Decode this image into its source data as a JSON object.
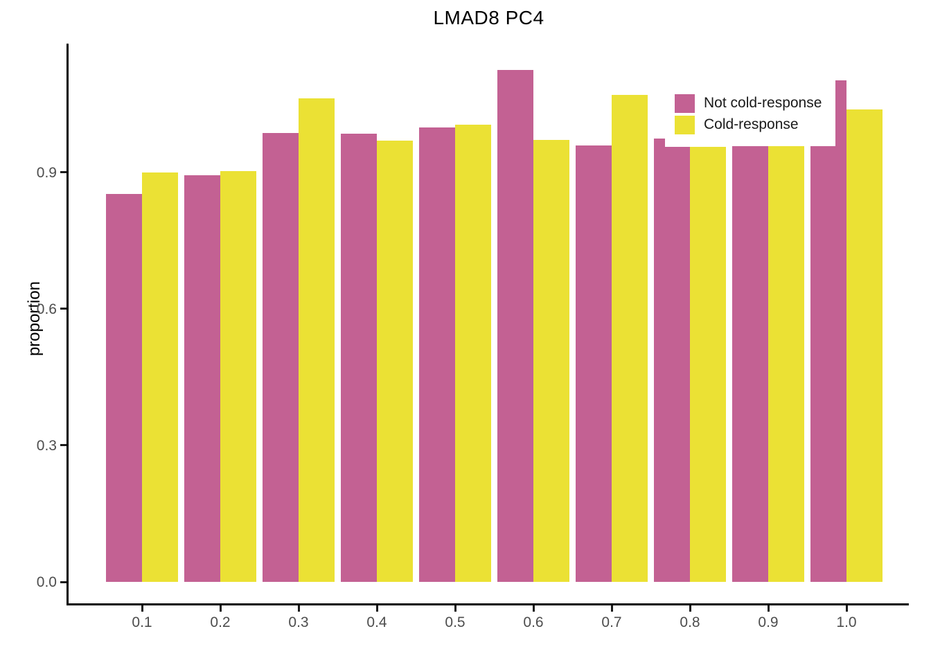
{
  "title": "LMAD8 PC4",
  "axes": {
    "y_label": "proportion",
    "y_ticks": [
      {
        "label": "0.0",
        "value": 0.0
      },
      {
        "label": "0.3",
        "value": 0.3
      },
      {
        "label": "0.6",
        "value": 0.6
      },
      {
        "label": "0.9",
        "value": 0.9
      }
    ],
    "x_ticks": [
      {
        "label": "0.1",
        "value": 0.1
      },
      {
        "label": "0.2",
        "value": 0.2
      },
      {
        "label": "0.3",
        "value": 0.3
      },
      {
        "label": "0.4",
        "value": 0.4
      },
      {
        "label": "0.5",
        "value": 0.5
      },
      {
        "label": "0.6",
        "value": 0.6
      },
      {
        "label": "0.7",
        "value": 0.7
      },
      {
        "label": "0.8",
        "value": 0.8
      },
      {
        "label": "0.9",
        "value": 0.9
      },
      {
        "label": "1.0",
        "value": 1.0
      }
    ]
  },
  "legend": {
    "items": [
      {
        "label": "Not cold-response",
        "color": "#C36193"
      },
      {
        "label": "Cold-response",
        "color": "#EBE134"
      }
    ]
  },
  "chart_data": {
    "type": "bar",
    "title": "LMAD8 PC4",
    "xlabel": "",
    "ylabel": "proportion",
    "categories": [
      0.1,
      0.2,
      0.3,
      0.4,
      0.5,
      0.6,
      0.7,
      0.8,
      0.9,
      1.0
    ],
    "series": [
      {
        "name": "Not cold-response",
        "color": "#C36193",
        "values": [
          0.853,
          0.894,
          0.987,
          0.985,
          0.999,
          1.125,
          0.959,
          0.957,
          0.958,
          0.958
        ]
      },
      {
        "name": "Cold-response",
        "color": "#EBE134",
        "values": [
          0.9,
          0.903,
          1.063,
          0.97,
          1.005,
          0.971,
          1.07,
          0.957,
          0.958,
          1.039
        ]
      }
    ],
    "extra_bars": [
      {
        "category": 0.8,
        "series": "Not cold-response",
        "value": 0.975,
        "edge": "left"
      },
      {
        "category": 1.0,
        "series": "Not cold-response",
        "value": 1.102,
        "edge": "right"
      }
    ],
    "ylim": [
      0,
      1.18
    ],
    "y_tick_values": [
      0.0,
      0.3,
      0.6,
      0.9
    ],
    "grid": false,
    "legend_position": "top-right-inside"
  }
}
